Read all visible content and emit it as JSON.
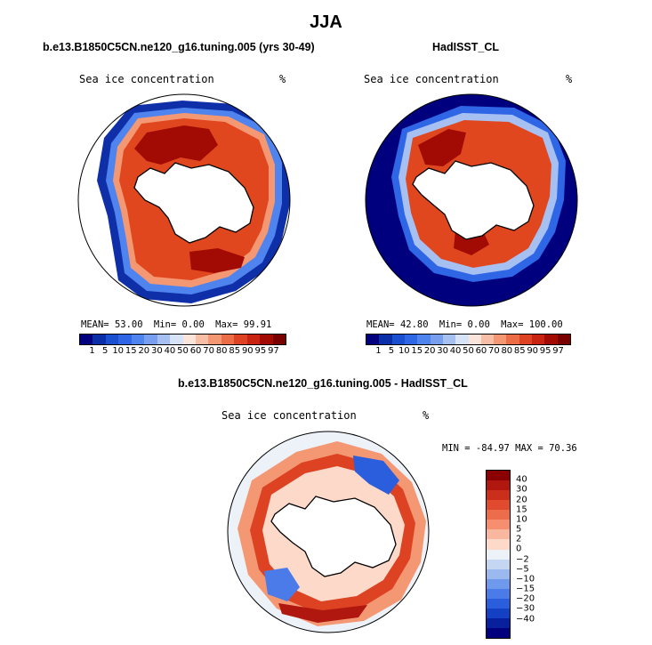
{
  "figure_title": "JJA",
  "panels": {
    "model": {
      "title": "b.e13.B1850C5CN.ne120_g16.tuning.005 (yrs 30-49)",
      "field": "Sea ice concentration",
      "units": "%",
      "stats": {
        "mean_label": "MEAN=",
        "mean": "53.00",
        "min_label": "Min=",
        "min": "0.00",
        "max_label": "Max=",
        "max": "99.91"
      }
    },
    "obs": {
      "title": "HadISST_CL",
      "field": "Sea ice concentration",
      "units": "%",
      "stats": {
        "mean_label": "MEAN=",
        "mean": "42.80",
        "min_label": "Min=",
        "min": "0.00",
        "max_label": "Max=",
        "max": "100.00"
      }
    },
    "diff": {
      "title": "b.e13.B1850C5CN.ne120_g16.tuning.005 - HadISST_CL",
      "field": "Sea ice concentration",
      "units": "%",
      "minmax": "MIN = -84.97 MAX =  70.36"
    }
  },
  "chart_data": [
    {
      "type": "heatmap",
      "title": "b.e13.B1850C5CN.ne120_g16.tuning.005 (yrs 30-49)",
      "projection": "south polar stereographic",
      "variable": "Sea ice concentration",
      "units": "%",
      "mean": 53.0,
      "min": 0.0,
      "max": 99.91,
      "colorbar_ticks": [
        "1",
        "5",
        "10",
        "15",
        "20",
        "30",
        "40",
        "50",
        "60",
        "70",
        "80",
        "85",
        "90",
        "95",
        "97"
      ],
      "colorbar_colors": [
        "#00007f",
        "#0a2ea8",
        "#1a4fd0",
        "#2f66e6",
        "#4f84ee",
        "#789fef",
        "#a6c0f2",
        "#d7e3f6",
        "#fbe5da",
        "#f8bfa6",
        "#f49874",
        "#ec6c45",
        "#dd4223",
        "#c82411",
        "#a10b04",
        "#7a0000"
      ]
    },
    {
      "type": "heatmap",
      "title": "HadISST_CL",
      "projection": "south polar stereographic",
      "variable": "Sea ice concentration",
      "units": "%",
      "mean": 42.8,
      "min": 0.0,
      "max": 100.0,
      "colorbar_ticks": [
        "1",
        "5",
        "10",
        "15",
        "20",
        "30",
        "40",
        "50",
        "60",
        "70",
        "80",
        "85",
        "90",
        "95",
        "97"
      ],
      "colorbar_colors": [
        "#00007f",
        "#0a2ea8",
        "#1a4fd0",
        "#2f66e6",
        "#4f84ee",
        "#789fef",
        "#a6c0f2",
        "#d7e3f6",
        "#fbe5da",
        "#f8bfa6",
        "#f49874",
        "#ec6c45",
        "#dd4223",
        "#c82411",
        "#a10b04",
        "#7a0000"
      ]
    },
    {
      "type": "heatmap",
      "title": "b.e13.B1850C5CN.ne120_g16.tuning.005 - HadISST_CL",
      "projection": "south polar stereographic",
      "variable": "Sea ice concentration",
      "units": "%",
      "min": -84.97,
      "max": 70.36,
      "colorbar_ticks": [
        "40",
        "30",
        "20",
        "15",
        "10",
        "5",
        "2",
        "0",
        "−2",
        "−5",
        "−10",
        "−15",
        "−20",
        "−30",
        "−40"
      ],
      "colorbar_colors": [
        "#8b0000",
        "#b0170f",
        "#cc2e1c",
        "#e04a2f",
        "#ec6c4c",
        "#f58f70",
        "#f9b79f",
        "#fcd9c9",
        "#edf1f8",
        "#c5d6f3",
        "#9bb9ef",
        "#6f99ec",
        "#4a7be8",
        "#2a5edd",
        "#1440c4",
        "#08209c",
        "#00007f"
      ]
    }
  ]
}
